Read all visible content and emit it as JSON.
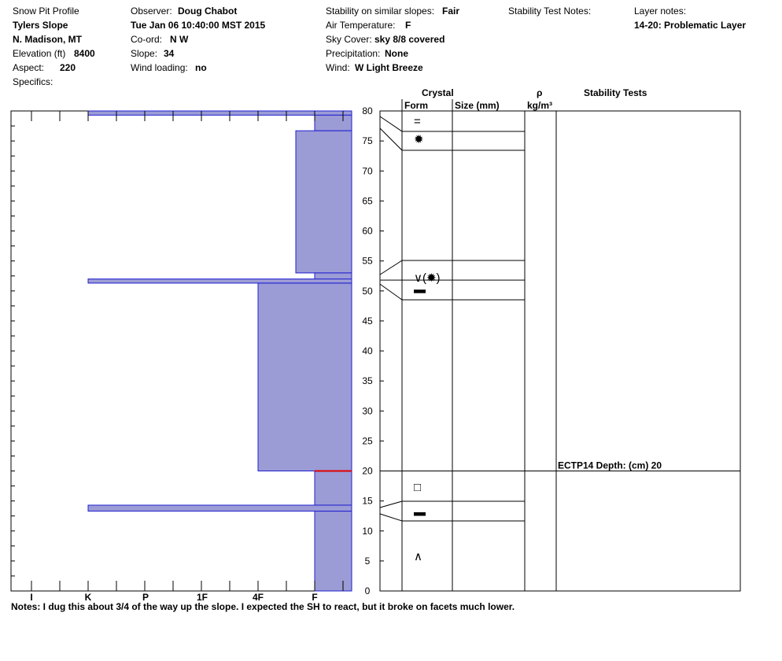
{
  "header": {
    "profile_label": "Snow Pit Profile",
    "site": "Tylers Slope",
    "location": "N. Madison, MT",
    "elevation_label": "Elevation (ft)",
    "elevation_value": "8400",
    "aspect_label": "Aspect:",
    "aspect_value": "220",
    "specifics_label": "Specifics:",
    "observer_label": "Observer:",
    "observer_value": "Doug Chabot",
    "datetime": "Tue Jan 06 10:40:00 MST 2015",
    "coord_label": "Co-ord:",
    "coord_value": "N  W",
    "slope_label": "Slope:",
    "slope_value": "34",
    "wind_loading_label": "Wind loading:",
    "wind_loading_value": "no",
    "stability_label": "Stability on similar slopes:",
    "stability_value": "Fair",
    "air_temp_label": "Air Temperature:",
    "air_temp_value": "F",
    "sky_label": "Sky Cover:",
    "sky_value": "sky 8/8 covered",
    "precip_label": "Precipitation:",
    "precip_value": "None",
    "wind_label": "Wind:",
    "wind_value": "W Light Breeze",
    "stability_notes_label": "Stability Test Notes:",
    "layer_notes_label": "Layer notes:",
    "layer_notes_value": "14-20: Problematic Layer"
  },
  "columns": {
    "crystal": "Crystal",
    "form": "Form",
    "size": "Size (mm)",
    "rho": "ρ",
    "density_unit": "kg/m³",
    "stability_tests": "Stability Tests"
  },
  "notes": "Notes:  I dug this about 3/4 of the way up the slope.  I expected the SH to react, but it broke on facets much lower.",
  "chart_data": {
    "type": "bar",
    "orientation": "horizontal",
    "y_axis": {
      "range": [
        0,
        80
      ],
      "ticks": [
        0,
        5,
        10,
        15,
        20,
        25,
        30,
        35,
        40,
        45,
        50,
        55,
        60,
        65,
        70,
        75,
        80
      ],
      "unit": "cm"
    },
    "hardness_ticks": [
      "I",
      "K",
      "P",
      "1F",
      "4F",
      "F"
    ],
    "hardness_scale_note": "F at right, I at left",
    "colors": {
      "layer_fill": "#9b9bd6",
      "layer_edge": "#2020d0",
      "failure_line": "#e00000"
    },
    "layers": [
      {
        "top": 80,
        "bottom": 79.3,
        "hardness": "K"
      },
      {
        "top": 79.3,
        "bottom": 76.7,
        "hardness": "F"
      },
      {
        "top": 76.7,
        "bottom": 53,
        "hardness": "4F-F"
      },
      {
        "top": 53,
        "bottom": 52,
        "hardness": "F"
      },
      {
        "top": 52,
        "bottom": 51.3,
        "hardness": "K"
      },
      {
        "top": 51.3,
        "bottom": 20,
        "hardness": "4F"
      },
      {
        "top": 20,
        "bottom": 14.3,
        "hardness": "F"
      },
      {
        "top": 14.3,
        "bottom": 13.3,
        "hardness": "K"
      },
      {
        "top": 13.3,
        "bottom": 0,
        "hardness": "F"
      }
    ],
    "failure_depth": 20,
    "crystal_boundaries": [
      80,
      76.7,
      53,
      51.3,
      20,
      14.3,
      13.3,
      0
    ],
    "crystal_forms": [
      {
        "y": 78.3,
        "symbol": "="
      },
      {
        "y": 75.3,
        "symbol": "✹"
      },
      {
        "y": 52.2,
        "symbol": "∨(✹)"
      },
      {
        "y": 50.3,
        "symbol": "▬"
      },
      {
        "y": 17.3,
        "symbol": "□"
      },
      {
        "y": 13.2,
        "symbol": "▬"
      },
      {
        "y": 5.8,
        "symbol": "∧"
      }
    ],
    "stability_tests": [
      {
        "depth": 20,
        "label": "ECTP14   Depth: (cm) 20"
      }
    ]
  }
}
